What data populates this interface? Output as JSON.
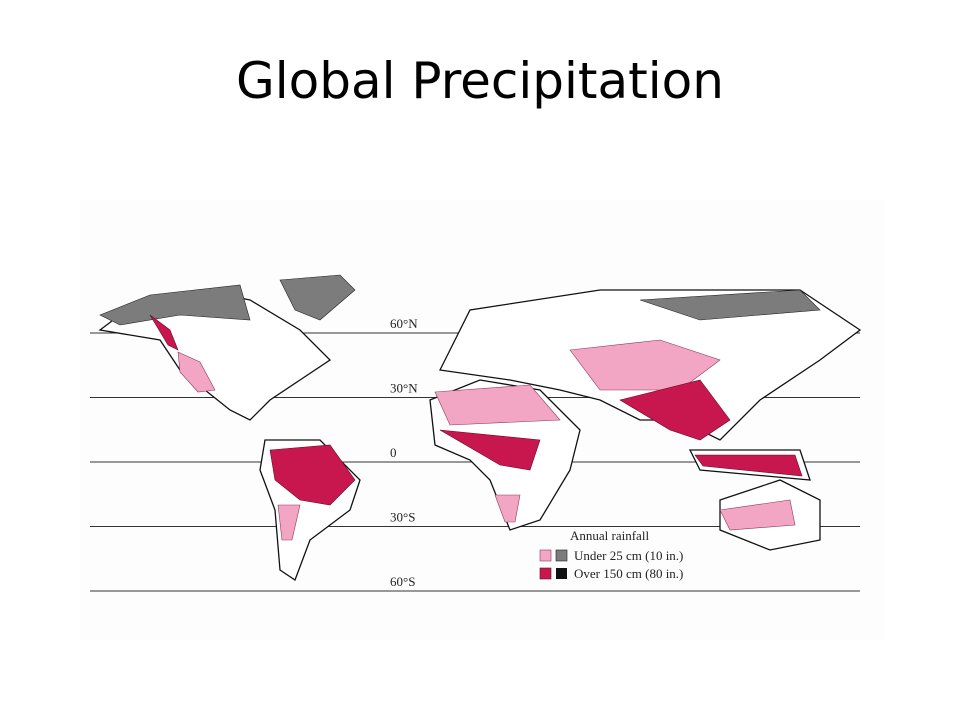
{
  "header": {
    "title": "Global Precipitation"
  },
  "map": {
    "latitudes": [
      "60°N",
      "30°N",
      "0",
      "30°S",
      "60°S"
    ],
    "legend": {
      "title": "Annual rainfall",
      "items": [
        "Under 25 cm (10 in.)",
        "Over 150 cm (80 in.)"
      ]
    }
  }
}
